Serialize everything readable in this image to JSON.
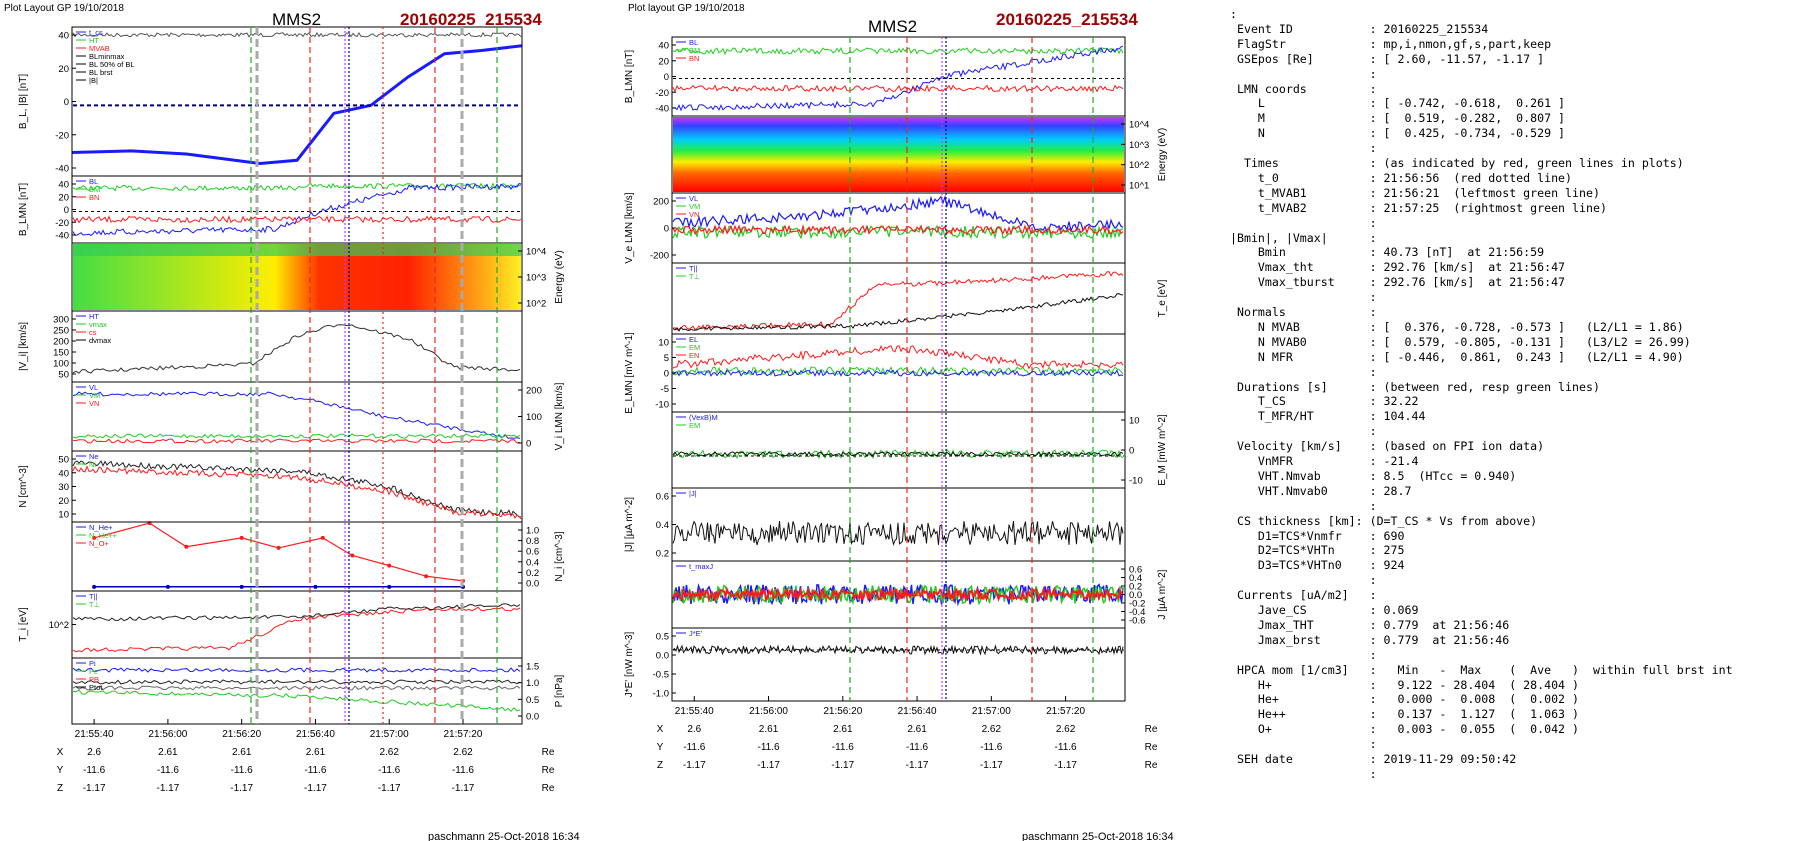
{
  "colors": {
    "title_red": "#a00000",
    "bx": "#1a1aff",
    "by": "#22cc22",
    "bz": "#ff1a1a",
    "black": "#000000",
    "green_line": "#22aa22",
    "red_line": "#ee2222",
    "magenta_line": "#cc33ff",
    "gray_line": "#aaaaaa",
    "dark_blue": "#000080"
  },
  "left_figure": {
    "header": "Plot Layout GP 19/10/2018",
    "title": "MMS2",
    "event": "20160225_215534",
    "footer": "paschmann 25-Oct-2018 16:34",
    "panels": [
      {
        "ylabel": "B_L, |B| [nT]",
        "ticks": [
          "40",
          "20",
          "0",
          "-20",
          "-40"
        ],
        "legend": [
          "t_cs",
          "HT",
          "MVAB",
          "BLminmax",
          "BL 50% of BL",
          "BL brst",
          "|B|"
        ]
      },
      {
        "ylabel": "B_LMN [nT]",
        "ticks": [
          "40",
          "20",
          "0",
          "-20",
          "-40"
        ],
        "legend": [
          "BL",
          "BM",
          "BN"
        ]
      },
      {
        "ylabel": "Energy (eV)",
        "ticks": [
          "10^4",
          "10^3",
          "10^2"
        ],
        "legend": []
      },
      {
        "ylabel": "|V_i| [km/s]",
        "ticks": [
          "300",
          "250",
          "200",
          "150",
          "100",
          "50"
        ],
        "legend": [
          "HT",
          "vmax",
          "cs",
          "dvmax"
        ]
      },
      {
        "ylabel": "V_i LMN [km/s]",
        "ticks": [
          "200",
          "100",
          "0"
        ],
        "legend": [
          "VL",
          "VM",
          "VN"
        ]
      },
      {
        "ylabel": "N [cm^-3]",
        "ticks": [
          "50",
          "40",
          "30",
          "20",
          "10"
        ],
        "legend": [
          "Ne",
          "Ni"
        ]
      },
      {
        "ylabel": "N_i [cm^-3]",
        "ticks": [
          "1.0",
          "0.8",
          "0.6",
          "0.4",
          "0.2",
          "0.0"
        ],
        "legend": [
          "N_He+",
          "N_He++",
          "N_O+"
        ]
      },
      {
        "ylabel": "T_i [eV]",
        "ticks": [
          "10^2"
        ],
        "legend": [
          "T||",
          "T⊥"
        ]
      },
      {
        "ylabel": "P [nPa]",
        "ticks": [
          "1.5",
          "1.0",
          "0.5",
          "0.0"
        ],
        "legend": [
          "Pi",
          "Pe",
          "PB",
          "Ptot"
        ]
      }
    ],
    "time_ticks": [
      "21:55:40",
      "21:56:00",
      "21:56:20",
      "21:56:40",
      "21:57:00",
      "21:57:20"
    ],
    "coords": [
      {
        "name": "X",
        "values": [
          "2.6",
          "2.61",
          "2.61",
          "2.61",
          "2.62",
          "2.62"
        ],
        "unit": "Re"
      },
      {
        "name": "Y",
        "values": [
          "-11.6",
          "-11.6",
          "-11.6",
          "-11.6",
          "-11.6",
          "-11.6"
        ],
        "unit": "Re"
      },
      {
        "name": "Z",
        "values": [
          "-1.17",
          "-1.17",
          "-1.17",
          "-1.17",
          "-1.17",
          "-1.17"
        ],
        "unit": "Re"
      }
    ]
  },
  "right_figure": {
    "header": "Plot layout GP 19/10/2018",
    "title": "MMS2",
    "event": "20160225_215534",
    "footer": "paschmann 25-Oct-2018 16:34",
    "panels": [
      {
        "ylabel": "B_LMN [nT]",
        "ticks": [
          "40",
          "20",
          "0",
          "-20",
          "-40"
        ],
        "legend": [
          "BL",
          "BM",
          "BN"
        ]
      },
      {
        "ylabel": "Energy (eV)",
        "ticks": [
          "10^4",
          "10^3",
          "10^2",
          "10^1"
        ],
        "legend": []
      },
      {
        "ylabel": "V_e LMN [km/s]",
        "ticks": [
          "200",
          "0",
          "-200"
        ],
        "legend": [
          "VL",
          "VM",
          "VN"
        ]
      },
      {
        "ylabel": "T_e [eV]",
        "ticks": [],
        "legend": [
          "T||",
          "T⊥"
        ]
      },
      {
        "ylabel": "E_LMN [mV m^-1]",
        "ticks": [
          "10",
          "5",
          "0",
          "-5",
          "-10"
        ],
        "legend": [
          "EL",
          "EM",
          "EN"
        ]
      },
      {
        "ylabel": "E_M [mW m^-2]",
        "ticks": [
          "10",
          "0",
          "-10"
        ],
        "legend": [
          "(VexB)M",
          "EM"
        ]
      },
      {
        "ylabel": "|J| [µA m^-2]",
        "ticks": [
          "0.6",
          "0.4",
          "0.2"
        ],
        "legend": [
          "|J|"
        ]
      },
      {
        "ylabel": "J [µA m^-2]",
        "ticks": [
          "0.6",
          "0.4",
          "0.2",
          "0.0",
          "-0.2",
          "-0.4",
          "-0.6"
        ],
        "legend": [
          "t_maxJ"
        ]
      },
      {
        "ylabel": "J*E' [nW m^-3]",
        "ticks": [
          "0.5",
          "0.0",
          "-0.5",
          "-1.0"
        ],
        "legend": [
          "J*E'"
        ]
      }
    ],
    "time_ticks": [
      "21:55:40",
      "21:56:00",
      "21:56:20",
      "21:56:40",
      "21:57:00",
      "21:57:20"
    ],
    "coords": [
      {
        "name": "X",
        "values": [
          "2.6",
          "2.61",
          "2.61",
          "2.61",
          "2.62",
          "2.62"
        ],
        "unit": "Re"
      },
      {
        "name": "Y",
        "values": [
          "-11.6",
          "-11.6",
          "-11.6",
          "-11.6",
          "-11.6",
          "-11.6"
        ],
        "unit": "Re"
      },
      {
        "name": "Z",
        "values": [
          "-1.17",
          "-1.17",
          "-1.17",
          "-1.17",
          "-1.17",
          "-1.17"
        ],
        "unit": "Re"
      }
    ]
  },
  "summary_lines": [
    ":",
    " Event ID           : 20160225_215534",
    " FlagStr            : mp,i,nmon,gf,s,part,keep",
    " GSEpos [Re]        : [ 2.60, -11.57, -1.17 ]",
    "                    :",
    " LMN coords         :",
    "    L               : [ -0.742, -0.618,  0.261 ]",
    "    M               : [  0.519, -0.282,  0.807 ]",
    "    N               : [  0.425, -0.734, -0.529 ]",
    "                    :",
    "  Times             : (as indicated by red, green lines in plots)",
    "    t_0             : 21:56:56  (red dotted line)",
    "    t_MVAB1         : 21:56:21  (leftmost green line)",
    "    t_MVAB2         : 21:57:25  (rightmost green line)",
    "                    :",
    "|Bmin|, |Vmax|      :",
    "    Bmin            : 40.73 [nT]  at 21:56:59",
    "    Vmax_tht        : 292.76 [km/s]  at 21:56:47",
    "    Vmax_tburst     : 292.76 [km/s]  at 21:56:47",
    "                    :",
    " Normals            :",
    "    N MVAB          : [  0.376, -0.728, -0.573 ]   (L2/L1 = 1.86)",
    "    N MVAB0         : [  0.579, -0.805, -0.131 ]   (L3/L2 = 26.99)",
    "    N MFR           : [ -0.446,  0.861,  0.243 ]   (L2/L1 = 4.90)",
    "                    :",
    " Durations [s]      : (between red, resp green lines)",
    "    T_CS            : 32.22",
    "    T_MFR/HT        : 104.44",
    "                    :",
    " Velocity [km/s]    : (based on FPI ion data)",
    "    VnMFR           : -21.4",
    "    VHT.Nmvab       : 8.5  (HTcc = 0.940)",
    "    VHT.Nmvab0      : 28.7",
    "                    :",
    " CS thickness [km]: (D=T_CS * Vs from above)",
    "    D1=TCS*Vnmfr    : 690",
    "    D2=TCS*VHTn     : 275",
    "    D3=TCS*VHTn0    : 924",
    "                    :",
    " Currents [uA/m2]   :",
    "    Jave_CS         : 0.069",
    "    Jmax_THT        : 0.779  at 21:56:46",
    "    Jmax_brst       : 0.779  at 21:56:46",
    "                    :",
    " HPCA mom [1/cm3]   :   Min   -  Max    (  Ave   )  within full brst int",
    "    H+              :   9.122 - 28.404  ( 28.404 )",
    "    He+             :   0.000 -  0.008  (  0.002 )",
    "    He++            :   0.137 -  1.127  (  1.063 )",
    "    O+              :   0.003 -  0.055  (  0.042 )",
    "                    :",
    " SEH date           : 2019-11-29 09:50:42",
    "                    :"
  ],
  "chart_data": [
    {
      "type": "line",
      "title": "MMS2",
      "xlabel": "",
      "x_ticks": [
        "21:55:40",
        "21:56:00",
        "21:56:20",
        "21:56:40",
        "21:57:00",
        "21:57:20"
      ],
      "panel_1": {
        "ylabel": "B_L, |B| [nT]",
        "ylim": [
          -45,
          50
        ],
        "series": [
          {
            "name": "BL brst",
            "x": [
              "21:55:34",
              "21:55:50",
              "21:56:05",
              "21:56:15",
              "21:56:25",
              "21:56:35",
              "21:56:45",
              "21:56:55",
              "21:57:05",
              "21:57:15",
              "21:57:25",
              "21:57:36"
            ],
            "values": [
              -30,
              -29,
              -31,
              -34,
              -37,
              -35,
              -5,
              0,
              18,
              33,
              35,
              38
            ]
          }
        ]
      },
      "panel_6": {
        "ylabel": "N_i [cm^-3]",
        "ylim": [
          0,
          1.0
        ],
        "series": [
          {
            "name": "N_He++",
            "x": [
              "21:55:40",
              "21:55:55",
              "21:56:05",
              "21:56:20",
              "21:56:30",
              "21:56:42",
              "21:56:50",
              "21:57:00",
              "21:57:10",
              "21:57:20"
            ],
            "values": [
              0.85,
              1.1,
              0.7,
              0.85,
              0.68,
              0.85,
              0.55,
              0.38,
              0.2,
              0.12
            ]
          },
          {
            "name": "N_O+",
            "x": [
              "21:55:40",
              "21:56:00",
              "21:56:20",
              "21:56:40",
              "21:57:00",
              "21:57:20"
            ],
            "values": [
              0.02,
              0.02,
              0.02,
              0.02,
              0.02,
              0.02
            ]
          }
        ]
      }
    },
    {
      "type": "line",
      "title": "MMS2",
      "xlabel": "",
      "x_ticks": [
        "21:55:40",
        "21:56:00",
        "21:56:20",
        "21:56:40",
        "21:57:00",
        "21:57:20"
      ],
      "panel_1": {
        "ylabel": "B_LMN [nT]",
        "ylim": [
          -45,
          50
        ]
      }
    }
  ]
}
